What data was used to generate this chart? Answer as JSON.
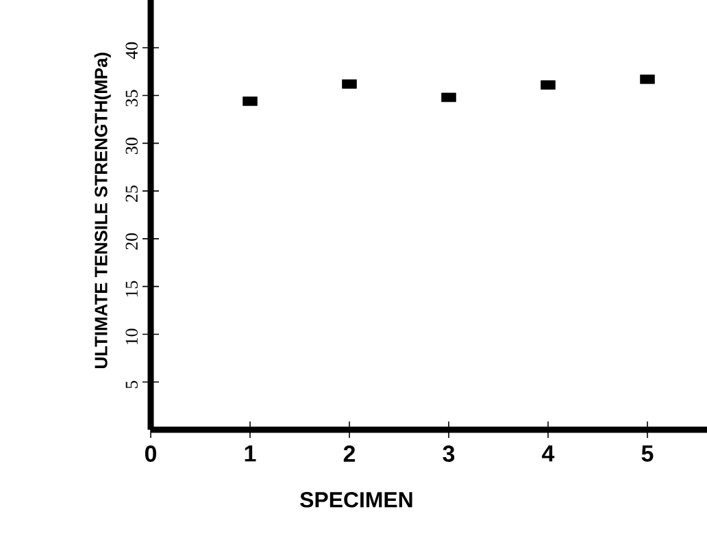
{
  "chart_data": {
    "type": "scatter",
    "xlabel": "SPECIMEN",
    "ylabel": "ULTIMATE TENSILE STRENGTH(MPa)",
    "x": [
      1,
      2,
      3,
      4,
      5
    ],
    "values": [
      34.4,
      36.2,
      34.8,
      36.1,
      36.7
    ],
    "color": "#000000",
    "marker": "square",
    "xlim": [
      0,
      5.6
    ],
    "ylim": [
      0,
      45
    ],
    "xticks": [
      0,
      1,
      2,
      3,
      4,
      5
    ],
    "yticks": [
      5,
      10,
      15,
      20,
      25,
      30,
      35,
      40
    ],
    "grid": false
  }
}
